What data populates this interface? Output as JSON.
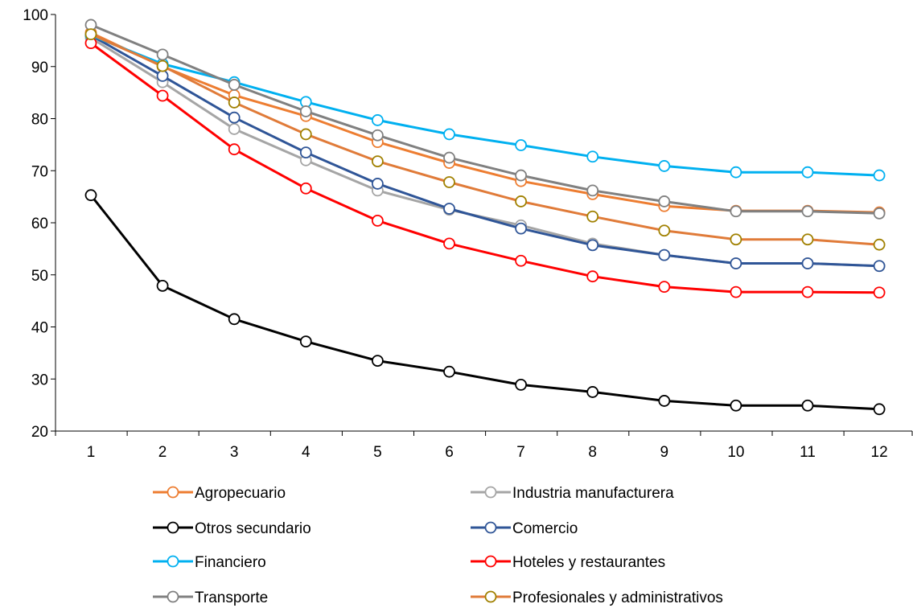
{
  "chart_data": {
    "type": "line",
    "title": "",
    "xlabel": "",
    "ylabel": "",
    "x": [
      1,
      2,
      3,
      4,
      5,
      6,
      7,
      8,
      9,
      10,
      11,
      12
    ],
    "ylim": [
      20,
      100
    ],
    "yticks": [
      20,
      30,
      40,
      50,
      60,
      70,
      80,
      90,
      100
    ],
    "grid": false,
    "legend_position": "bottom",
    "marker": "hollow-circle",
    "series": [
      {
        "name": "Agropecuario",
        "color": "#ED7D31",
        "values": [
          96.5,
          90.0,
          84.5,
          80.5,
          75.5,
          71.5,
          68.0,
          65.5,
          63.2,
          62.3,
          62.3,
          62.0
        ]
      },
      {
        "name": "Industria manufacturera",
        "color": "#A5A5A5",
        "values": [
          95.5,
          87.0,
          78.0,
          72.0,
          66.2,
          62.5,
          59.5,
          56.0,
          53.8,
          52.2,
          52.2,
          51.7
        ]
      },
      {
        "name": "Otros secundario",
        "color": "#000000",
        "values": [
          65.3,
          47.9,
          41.5,
          37.2,
          33.5,
          31.4,
          28.9,
          27.5,
          25.8,
          24.9,
          24.9,
          24.2
        ]
      },
      {
        "name": "Comercio",
        "color": "#2F5597",
        "values": [
          96.0,
          88.2,
          80.2,
          73.5,
          67.5,
          62.7,
          58.9,
          55.7,
          53.8,
          52.2,
          52.2,
          51.7
        ]
      },
      {
        "name": "Financiero",
        "color": "#00B0F0",
        "values": [
          96.0,
          90.5,
          87.0,
          83.2,
          79.7,
          77.0,
          74.9,
          72.7,
          70.9,
          69.7,
          69.7,
          69.1
        ]
      },
      {
        "name": "Hoteles y restaurantes",
        "color": "#FF0000",
        "values": [
          94.5,
          84.4,
          74.1,
          66.6,
          60.4,
          56.0,
          52.7,
          49.7,
          47.7,
          46.7,
          46.7,
          46.6
        ]
      },
      {
        "name": "Transporte",
        "color": "#808080",
        "values": [
          98.0,
          92.3,
          86.5,
          81.4,
          76.8,
          72.5,
          69.1,
          66.2,
          64.1,
          62.2,
          62.2,
          61.8
        ]
      },
      {
        "name": "Profesionales y administrativos",
        "color": "#E07B39",
        "marker_color": "#A08000",
        "values": [
          96.2,
          90.1,
          83.1,
          77.0,
          71.8,
          67.8,
          64.1,
          61.2,
          58.5,
          56.8,
          56.8,
          55.8
        ]
      }
    ]
  }
}
